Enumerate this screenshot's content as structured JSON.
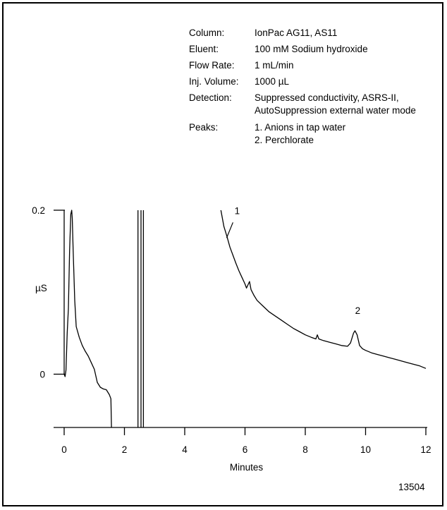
{
  "conditions": [
    {
      "label": "Column:",
      "value": "IonPac  AG11, AS11"
    },
    {
      "label": "Eluent:",
      "value": "100 mM Sodium hydroxide"
    },
    {
      "label": "Flow Rate:",
      "value": "1 mL/min"
    },
    {
      "label": "Inj. Volume:",
      "value": "1000 µL"
    },
    {
      "label": "Detection:",
      "value": "Suppressed conductivity, ASRS-II,",
      "value2": "AutoSuppression external water mode"
    },
    {
      "label": "Peaks:",
      "value": "1.  Anions in tap water",
      "value2": "2.  Perchlorate"
    }
  ],
  "figure_code": "13504",
  "chart_data": {
    "type": "line",
    "xlabel": "Minutes",
    "ylabel": "µS",
    "xlim": [
      0,
      12
    ],
    "ylim": [
      -0.065,
      0.2
    ],
    "x_ticks": [
      0,
      2,
      4,
      6,
      8,
      10,
      12
    ],
    "y_ticks": [
      {
        "value": 0.2,
        "label": "0.2"
      },
      {
        "value": 0,
        "label": "0"
      }
    ],
    "grid": false,
    "peak_labels": [
      {
        "label": "1",
        "x": 5.6,
        "y": 0.192
      },
      {
        "label": "2",
        "x": 9.6,
        "y": 0.07
      }
    ],
    "series": [
      {
        "points": [
          [
            0.0,
            0.2
          ],
          [
            0.0,
            0.0
          ],
          [
            0.03,
            -0.003
          ],
          [
            0.06,
            0.005
          ],
          [
            0.1,
            0.05
          ],
          [
            0.14,
            0.08
          ],
          [
            0.18,
            0.15
          ],
          [
            0.22,
            0.195
          ],
          [
            0.25,
            0.2
          ],
          [
            0.27,
            0.19
          ],
          [
            0.3,
            0.15
          ],
          [
            0.35,
            0.09
          ],
          [
            0.4,
            0.058
          ],
          [
            0.5,
            0.045
          ],
          [
            0.6,
            0.035
          ],
          [
            0.7,
            0.028
          ],
          [
            0.8,
            0.022
          ],
          [
            0.9,
            0.014
          ],
          [
            1.0,
            0.006
          ],
          [
            1.1,
            -0.01
          ],
          [
            1.2,
            -0.016
          ],
          [
            1.3,
            -0.018
          ],
          [
            1.4,
            -0.019
          ],
          [
            1.5,
            -0.025
          ],
          [
            1.55,
            -0.03
          ],
          [
            1.57,
            -0.065
          ]
        ]
      },
      {
        "points": [
          [
            2.45,
            -0.065
          ],
          [
            2.45,
            0.2
          ]
        ]
      },
      {
        "points": [
          [
            2.55,
            0.2
          ],
          [
            2.55,
            -0.065
          ]
        ]
      },
      {
        "points": [
          [
            2.63,
            -0.065
          ],
          [
            2.63,
            0.2
          ]
        ]
      },
      {
        "points": [
          [
            5.2,
            0.2
          ],
          [
            5.3,
            0.18
          ],
          [
            5.4,
            0.168
          ],
          [
            5.5,
            0.155
          ],
          [
            5.6,
            0.145
          ],
          [
            5.7,
            0.135
          ],
          [
            5.8,
            0.126
          ],
          [
            5.9,
            0.118
          ],
          [
            6.0,
            0.11
          ],
          [
            6.05,
            0.105
          ],
          [
            6.15,
            0.113
          ],
          [
            6.2,
            0.103
          ],
          [
            6.3,
            0.096
          ],
          [
            6.4,
            0.09
          ],
          [
            6.6,
            0.083
          ],
          [
            6.8,
            0.076
          ],
          [
            7.0,
            0.071
          ],
          [
            7.2,
            0.066
          ],
          [
            7.4,
            0.061
          ],
          [
            7.6,
            0.056
          ],
          [
            7.8,
            0.052
          ],
          [
            8.0,
            0.048
          ],
          [
            8.2,
            0.045
          ],
          [
            8.35,
            0.043
          ],
          [
            8.4,
            0.048
          ],
          [
            8.45,
            0.043
          ],
          [
            8.6,
            0.041
          ],
          [
            8.8,
            0.039
          ],
          [
            9.0,
            0.037
          ],
          [
            9.2,
            0.035
          ],
          [
            9.4,
            0.034
          ],
          [
            9.5,
            0.038
          ],
          [
            9.6,
            0.05
          ],
          [
            9.65,
            0.053
          ],
          [
            9.72,
            0.048
          ],
          [
            9.8,
            0.035
          ],
          [
            9.9,
            0.031
          ],
          [
            10.0,
            0.029
          ],
          [
            10.2,
            0.026
          ],
          [
            10.4,
            0.024
          ],
          [
            10.6,
            0.022
          ],
          [
            10.8,
            0.02
          ],
          [
            11.0,
            0.018
          ],
          [
            11.2,
            0.016
          ],
          [
            11.4,
            0.014
          ],
          [
            11.6,
            0.012
          ],
          [
            11.8,
            0.01
          ],
          [
            12.0,
            0.007
          ]
        ]
      }
    ]
  }
}
